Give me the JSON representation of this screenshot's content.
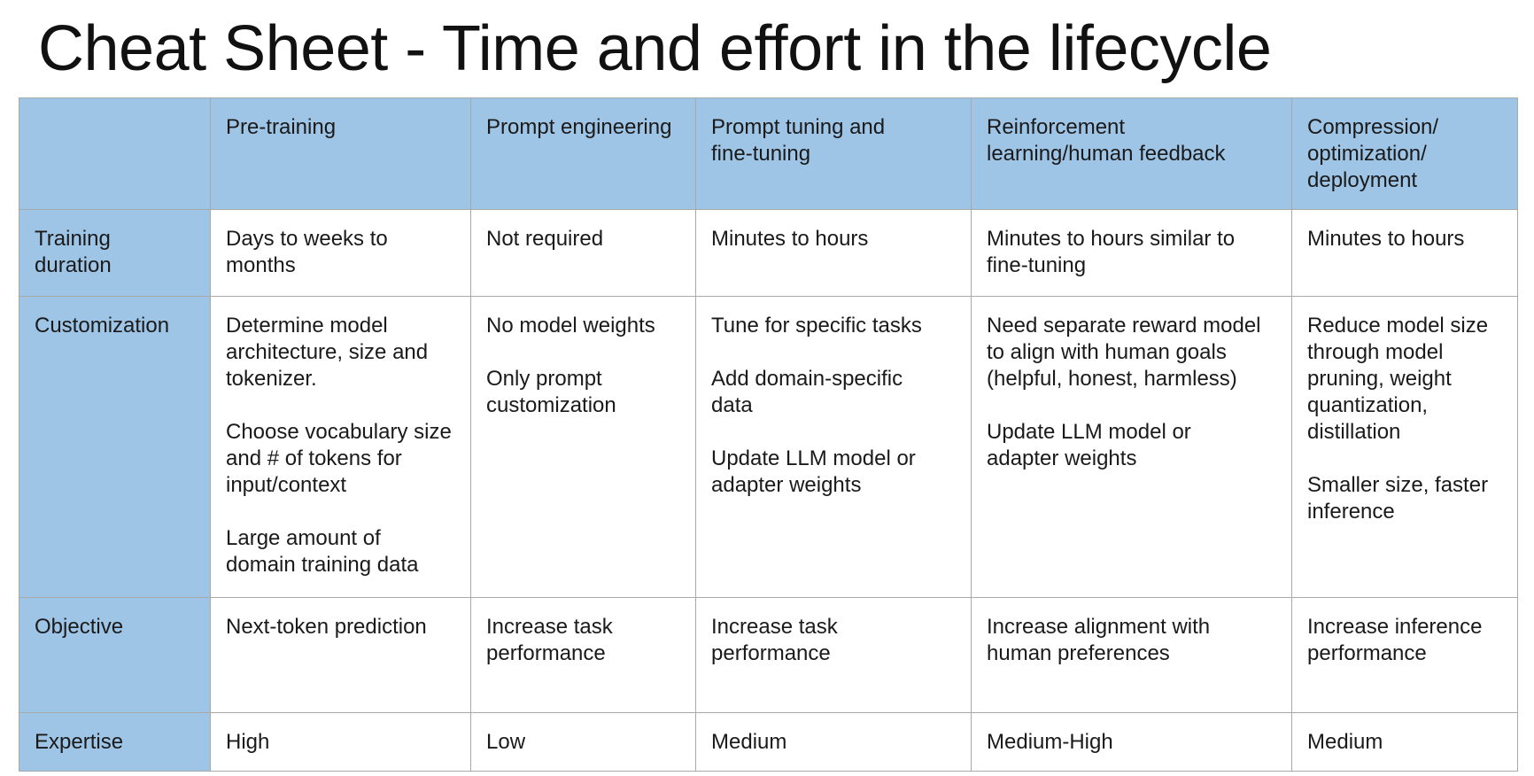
{
  "title": "Cheat Sheet - Time and effort in the lifecycle",
  "table": {
    "corner": "",
    "columns": [
      "Pre-training",
      "Prompt engineering",
      "Prompt tuning and\nfine-tuning",
      "Reinforcement\nlearning/human feedback",
      "Compression/\noptimization/\ndeployment"
    ],
    "rows": [
      {
        "label": "Training\nduration",
        "cells": [
          "Days to weeks to\nmonths",
          "Not required",
          "Minutes to hours",
          "Minutes to hours similar to\nfine-tuning",
          "Minutes to hours"
        ]
      },
      {
        "label": "Customization",
        "cells": [
          "Determine model\narchitecture, size and\ntokenizer.\n\nChoose vocabulary size\nand # of tokens for\ninput/context\n\nLarge amount of\ndomain training data",
          "No model weights\n\nOnly prompt\ncustomization",
          "Tune for specific tasks\n\nAdd domain-specific\ndata\n\nUpdate LLM model or\nadapter weights",
          "Need separate reward model\nto align with human goals\n(helpful, honest, harmless)\n\nUpdate LLM model or\nadapter weights",
          "Reduce model size\nthrough model\npruning, weight\nquantization,\ndistillation\n\nSmaller size, faster\ninference"
        ]
      },
      {
        "label": "Objective",
        "cells": [
          "Next-token prediction",
          "Increase task\nperformance",
          "Increase task\nperformance",
          "Increase alignment with\nhuman preferences",
          "Increase inference\nperformance"
        ]
      },
      {
        "label": "Expertise",
        "cells": [
          "High",
          "Low",
          "Medium",
          "Medium-High",
          "Medium"
        ]
      }
    ]
  },
  "colors": {
    "header_fill": "#9fc5e6",
    "border": "#a9a9a9",
    "text": "#1a1a1a"
  }
}
